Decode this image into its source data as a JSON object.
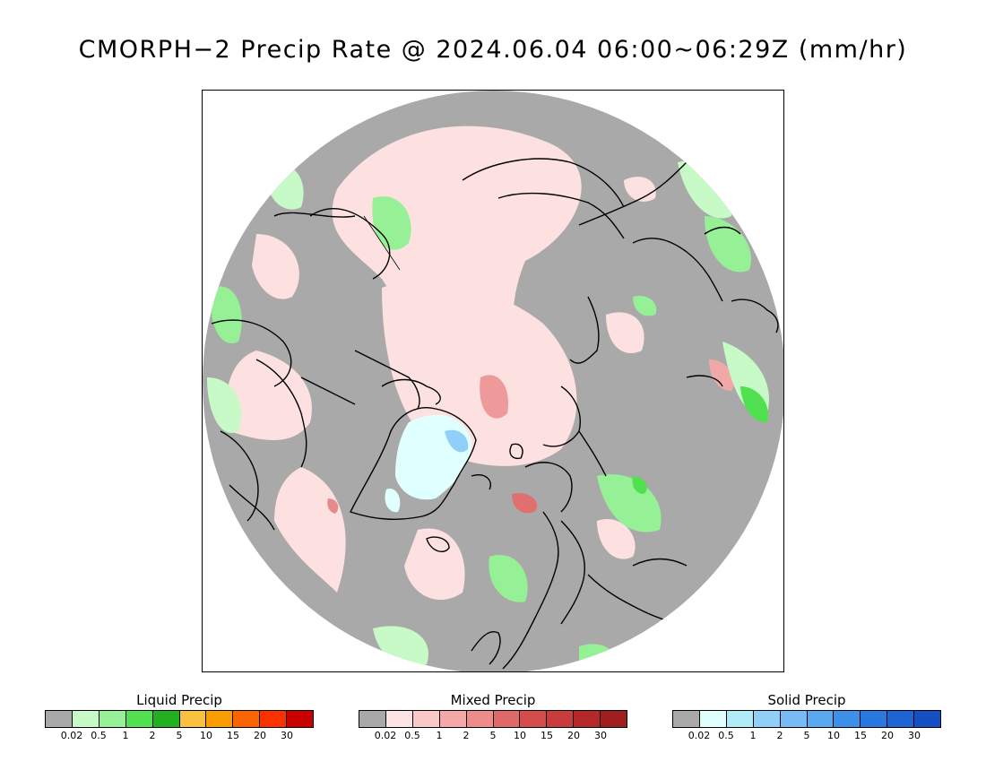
{
  "title": "CMORPH−2 Precip Rate @ 2024.06.04 06:00~06:29Z (mm/hr)",
  "map": {
    "projection": "north-polar-stereographic",
    "background_color": "#a9a9a9",
    "coastline_color": "#000000"
  },
  "legends": [
    {
      "title": "Liquid Precip",
      "colors": [
        "#a9a9a9",
        "#c8fac8",
        "#96f096",
        "#50e050",
        "#20b020",
        "#fac040",
        "#fa9c00",
        "#fa6400",
        "#fa3200",
        "#c80000"
      ],
      "ticks": [
        "0.02",
        "0.5",
        "1",
        "2",
        "5",
        "10",
        "15",
        "20",
        "30"
      ]
    },
    {
      "title": "Mixed Precip",
      "colors": [
        "#a9a9a9",
        "#fde4e4",
        "#fbc8c8",
        "#f4a8a8",
        "#ee8c8c",
        "#e06868",
        "#d44c4c",
        "#c83c3c",
        "#b42828",
        "#a01e1e"
      ],
      "ticks": [
        "0.02",
        "0.5",
        "1",
        "2",
        "5",
        "10",
        "15",
        "20",
        "30"
      ]
    },
    {
      "title": "Solid Precip",
      "colors": [
        "#a9a9a9",
        "#e0ffff",
        "#b0ecf8",
        "#90d0f8",
        "#78baf4",
        "#5aa8f0",
        "#3c90e8",
        "#2878e0",
        "#1e64d4",
        "#1450c4"
      ],
      "ticks": [
        "0.02",
        "0.5",
        "1",
        "2",
        "5",
        "10",
        "15",
        "20",
        "30"
      ]
    }
  ]
}
